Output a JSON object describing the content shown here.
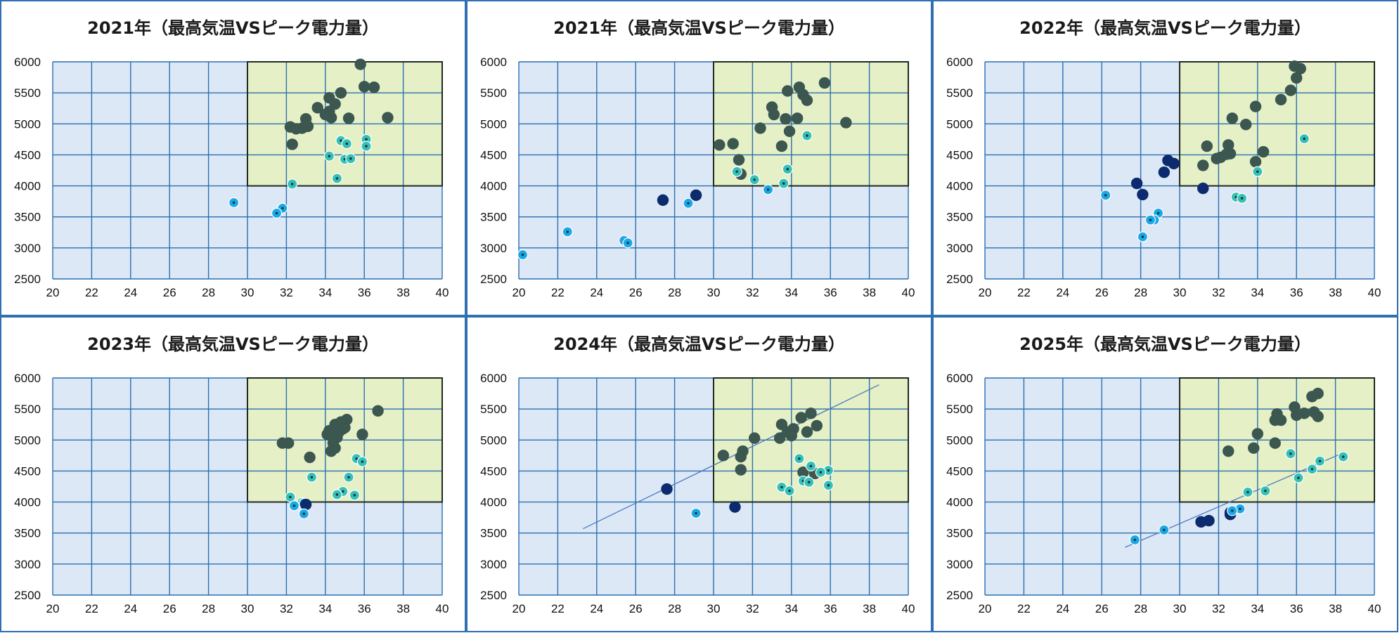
{
  "colors": {
    "panel_border": "#2f6fb3",
    "plot_bg": "#dde8f6",
    "grid": "#2a6fb0",
    "zone_fill": "#e5f0c6",
    "zone_border": "#1f2a20",
    "dark_green": "#3c5650",
    "teal": "#35c0b8",
    "blue": "#1aa8e8",
    "navy": "#0b2b6e",
    "trend": "#4a78c0"
  },
  "chart_data": [
    {
      "type": "scatter",
      "title": "2021年（最高気温VSピーク電力量）",
      "xlim": [
        20,
        40
      ],
      "ylim": [
        2500,
        6000
      ],
      "x_ticks": [
        "20",
        "22",
        "24",
        "26",
        "28",
        "30",
        "32",
        "34",
        "36",
        "38",
        "40"
      ],
      "y_ticks": [
        "2500",
        "3000",
        "3500",
        "4000",
        "4500",
        "5000",
        "5500",
        "6000"
      ],
      "highlight_zone": {
        "x": [
          30,
          40
        ],
        "y": [
          4000,
          6000
        ]
      },
      "grid": true,
      "series": [
        {
          "color": "dark_green",
          "marker": "large",
          "points": [
            [
              35.8,
              5960
            ],
            [
              36.0,
              5600
            ],
            [
              36.5,
              5590
            ],
            [
              34.8,
              5500
            ],
            [
              34.2,
              5420
            ],
            [
              34.5,
              5320
            ],
            [
              33.6,
              5260
            ],
            [
              34.0,
              5150
            ],
            [
              34.3,
              5100
            ],
            [
              35.2,
              5090
            ],
            [
              37.2,
              5100
            ],
            [
              33.0,
              5080
            ],
            [
              33.1,
              4960
            ],
            [
              32.2,
              4950
            ],
            [
              32.5,
              4920
            ],
            [
              32.8,
              4930
            ],
            [
              32.3,
              4670
            ],
            [
              34.2,
              5200
            ]
          ]
        },
        {
          "color": "teal",
          "marker": "dot",
          "points": [
            [
              34.8,
              4730
            ],
            [
              35.1,
              4680
            ],
            [
              36.1,
              4750
            ],
            [
              36.1,
              4640
            ],
            [
              34.2,
              4480
            ],
            [
              35.0,
              4430
            ],
            [
              35.3,
              4440
            ],
            [
              34.6,
              4120
            ],
            [
              32.3,
              4030
            ]
          ]
        },
        {
          "color": "blue",
          "marker": "dot",
          "points": [
            [
              29.3,
              3730
            ],
            [
              31.8,
              3640
            ],
            [
              31.5,
              3560
            ]
          ]
        }
      ]
    },
    {
      "type": "scatter",
      "title": "2021年（最高気温VSピーク電力量）",
      "xlim": [
        20,
        40
      ],
      "ylim": [
        2500,
        6000
      ],
      "x_ticks": [
        "20",
        "22",
        "24",
        "26",
        "28",
        "30",
        "32",
        "34",
        "36",
        "38",
        "40"
      ],
      "y_ticks": [
        "2500",
        "3000",
        "3500",
        "4000",
        "4500",
        "5000",
        "5500",
        "6000"
      ],
      "highlight_zone": {
        "x": [
          30,
          40
        ],
        "y": [
          4000,
          6000
        ]
      },
      "grid": true,
      "series": [
        {
          "color": "dark_green",
          "marker": "large",
          "points": [
            [
              35.7,
              5660
            ],
            [
              34.4,
              5590
            ],
            [
              33.8,
              5530
            ],
            [
              34.6,
              5470
            ],
            [
              34.8,
              5380
            ],
            [
              33.0,
              5270
            ],
            [
              33.1,
              5150
            ],
            [
              33.7,
              5080
            ],
            [
              34.3,
              5090
            ],
            [
              36.8,
              5020
            ],
            [
              32.4,
              4930
            ],
            [
              33.9,
              4880
            ],
            [
              30.3,
              4660
            ],
            [
              31.0,
              4680
            ],
            [
              33.5,
              4640
            ],
            [
              31.3,
              4420
            ],
            [
              31.4,
              4190
            ]
          ]
        },
        {
          "color": "teal",
          "marker": "dot",
          "points": [
            [
              34.8,
              4810
            ],
            [
              33.8,
              4270
            ],
            [
              31.2,
              4230
            ],
            [
              32.1,
              4100
            ],
            [
              33.6,
              4040
            ]
          ]
        },
        {
          "color": "navy",
          "marker": "large",
          "points": [
            [
              29.1,
              3850
            ],
            [
              27.4,
              3770
            ]
          ]
        },
        {
          "color": "blue",
          "marker": "dot",
          "points": [
            [
              32.8,
              3940
            ],
            [
              28.7,
              3720
            ],
            [
              22.5,
              3260
            ],
            [
              25.4,
              3120
            ],
            [
              25.6,
              3080
            ],
            [
              20.2,
              2890
            ]
          ]
        }
      ]
    },
    {
      "type": "scatter",
      "title": "2022年（最高気温VSピーク電力量）",
      "xlim": [
        20,
        40
      ],
      "ylim": [
        2500,
        6000
      ],
      "x_ticks": [
        "20",
        "22",
        "24",
        "26",
        "28",
        "30",
        "32",
        "34",
        "36",
        "38",
        "40"
      ],
      "y_ticks": [
        "2500",
        "3000",
        "3500",
        "4000",
        "4500",
        "5000",
        "5500",
        "6000"
      ],
      "highlight_zone": {
        "x": [
          30,
          40
        ],
        "y": [
          4000,
          6000
        ]
      },
      "grid": true,
      "series": [
        {
          "color": "dark_green",
          "marker": "large",
          "points": [
            [
              35.9,
              5930
            ],
            [
              36.2,
              5890
            ],
            [
              36.0,
              5740
            ],
            [
              35.7,
              5540
            ],
            [
              35.2,
              5390
            ],
            [
              33.9,
              5280
            ],
            [
              32.7,
              5090
            ],
            [
              33.4,
              4990
            ],
            [
              32.5,
              4660
            ],
            [
              31.4,
              4640
            ],
            [
              34.3,
              4550
            ],
            [
              32.4,
              4510
            ],
            [
              32.6,
              4520
            ],
            [
              32.1,
              4460
            ],
            [
              31.9,
              4440
            ],
            [
              33.9,
              4390
            ],
            [
              31.2,
              4330
            ]
          ]
        },
        {
          "color": "teal",
          "marker": "dot",
          "points": [
            [
              36.4,
              4760
            ],
            [
              34.0,
              4230
            ],
            [
              32.9,
              3820
            ],
            [
              33.2,
              3800
            ]
          ]
        },
        {
          "color": "navy",
          "marker": "large",
          "points": [
            [
              29.4,
              4410
            ],
            [
              29.7,
              4360
            ],
            [
              29.2,
              4220
            ],
            [
              27.8,
              4040
            ],
            [
              28.1,
              3860
            ],
            [
              31.2,
              3960
            ]
          ]
        },
        {
          "color": "blue",
          "marker": "dot",
          "points": [
            [
              26.2,
              3850
            ],
            [
              28.9,
              3560
            ],
            [
              28.7,
              3450
            ],
            [
              28.5,
              3450
            ],
            [
              28.1,
              3180
            ]
          ]
        }
      ]
    },
    {
      "type": "scatter",
      "title": "2023年（最高気温VSピーク電力量）",
      "xlim": [
        20,
        40
      ],
      "ylim": [
        2500,
        6000
      ],
      "x_ticks": [
        "20",
        "22",
        "24",
        "26",
        "28",
        "30",
        "32",
        "34",
        "36",
        "38",
        "40"
      ],
      "y_ticks": [
        "2500",
        "3000",
        "3500",
        "4000",
        "4500",
        "5000",
        "5500",
        "6000"
      ],
      "highlight_zone": {
        "x": [
          30,
          40
        ],
        "y": [
          4000,
          6000
        ]
      },
      "grid": true,
      "series": [
        {
          "color": "dark_green",
          "marker": "large",
          "points": [
            [
              36.7,
              5470
            ],
            [
              35.1,
              5330
            ],
            [
              34.8,
              5290
            ],
            [
              34.5,
              5250
            ],
            [
              35.0,
              5200
            ],
            [
              34.2,
              5150
            ],
            [
              34.3,
              5120
            ],
            [
              34.7,
              5130
            ],
            [
              34.9,
              5180
            ],
            [
              34.1,
              5090
            ],
            [
              35.9,
              5090
            ],
            [
              34.6,
              5040
            ],
            [
              31.8,
              4950
            ],
            [
              32.1,
              4950
            ],
            [
              34.4,
              4950
            ],
            [
              34.5,
              4870
            ],
            [
              34.3,
              4820
            ],
            [
              33.2,
              4720
            ]
          ]
        },
        {
          "color": "teal",
          "marker": "dot",
          "points": [
            [
              35.6,
              4700
            ],
            [
              35.9,
              4650
            ],
            [
              33.3,
              4400
            ],
            [
              35.2,
              4400
            ],
            [
              34.9,
              4170
            ],
            [
              34.6,
              4120
            ],
            [
              35.5,
              4110
            ],
            [
              32.2,
              4080
            ],
            [
              32.8,
              3990
            ],
            [
              32.9,
              3980
            ]
          ]
        },
        {
          "color": "navy",
          "marker": "large",
          "points": [
            [
              33.0,
              3960
            ]
          ]
        },
        {
          "color": "blue",
          "marker": "dot",
          "points": [
            [
              32.4,
              3940
            ],
            [
              32.9,
              3810
            ]
          ]
        }
      ]
    },
    {
      "type": "scatter",
      "title": "2024年（最高気温VSピーク電力量）",
      "xlim": [
        20,
        40
      ],
      "ylim": [
        2500,
        6000
      ],
      "x_ticks": [
        "20",
        "22",
        "24",
        "26",
        "28",
        "30",
        "32",
        "34",
        "36",
        "38",
        "40"
      ],
      "y_ticks": [
        "2500",
        "3000",
        "3500",
        "4000",
        "4500",
        "5000",
        "5500",
        "6000"
      ],
      "highlight_zone": {
        "x": [
          30,
          40
        ],
        "y": [
          4000,
          6000
        ]
      },
      "grid": true,
      "trendline": [
        [
          23.3,
          3570
        ],
        [
          38.5,
          5890
        ]
      ],
      "series": [
        {
          "color": "dark_green",
          "marker": "large",
          "points": [
            [
              35.0,
              5430
            ],
            [
              34.5,
              5360
            ],
            [
              33.5,
              5250
            ],
            [
              34.1,
              5180
            ],
            [
              33.8,
              5130
            ],
            [
              34.0,
              5070
            ],
            [
              34.8,
              5130
            ],
            [
              35.3,
              5230
            ],
            [
              32.1,
              5030
            ],
            [
              33.4,
              5030
            ],
            [
              31.5,
              4820
            ],
            [
              30.5,
              4750
            ],
            [
              31.4,
              4730
            ],
            [
              34.6,
              4480
            ],
            [
              35.2,
              4460
            ],
            [
              31.4,
              4520
            ]
          ]
        },
        {
          "color": "teal",
          "marker": "dot",
          "points": [
            [
              34.4,
              4700
            ],
            [
              35.0,
              4580
            ],
            [
              35.9,
              4510
            ],
            [
              35.5,
              4480
            ],
            [
              34.6,
              4340
            ],
            [
              34.9,
              4320
            ],
            [
              35.9,
              4270
            ],
            [
              33.5,
              4240
            ],
            [
              33.9,
              4180
            ]
          ]
        },
        {
          "color": "navy",
          "marker": "large",
          "points": [
            [
              27.6,
              4210
            ],
            [
              31.1,
              3920
            ]
          ]
        },
        {
          "color": "blue",
          "marker": "dot",
          "points": [
            [
              29.1,
              3820
            ]
          ]
        }
      ]
    },
    {
      "type": "scatter",
      "title": "2025年（最高気温VSピーク電力量）",
      "xlim": [
        20,
        40
      ],
      "ylim": [
        2500,
        6000
      ],
      "x_ticks": [
        "20",
        "22",
        "24",
        "26",
        "28",
        "30",
        "32",
        "34",
        "36",
        "38",
        "40"
      ],
      "y_ticks": [
        "2500",
        "3000",
        "3500",
        "4000",
        "4500",
        "5000",
        "5500",
        "6000"
      ],
      "highlight_zone": {
        "x": [
          30,
          40
        ],
        "y": [
          4000,
          6000
        ]
      },
      "grid": true,
      "trendline": [
        [
          27.2,
          3270
        ],
        [
          38.3,
          4780
        ]
      ],
      "series": [
        {
          "color": "dark_green",
          "marker": "large",
          "points": [
            [
              37.1,
              5750
            ],
            [
              36.8,
              5700
            ],
            [
              35.9,
              5530
            ],
            [
              36.4,
              5430
            ],
            [
              36.9,
              5450
            ],
            [
              37.1,
              5380
            ],
            [
              36.0,
              5400
            ],
            [
              35.0,
              5420
            ],
            [
              34.9,
              5320
            ],
            [
              35.2,
              5320
            ],
            [
              34.0,
              5100
            ],
            [
              34.9,
              4950
            ],
            [
              33.8,
              4870
            ],
            [
              32.5,
              4820
            ]
          ]
        },
        {
          "color": "teal",
          "marker": "dot",
          "points": [
            [
              35.7,
              4780
            ],
            [
              38.4,
              4730
            ],
            [
              37.2,
              4660
            ],
            [
              36.8,
              4530
            ],
            [
              36.1,
              4390
            ],
            [
              34.4,
              4180
            ],
            [
              33.5,
              4160
            ]
          ]
        },
        {
          "color": "navy",
          "marker": "large",
          "points": [
            [
              31.5,
              3700
            ],
            [
              31.1,
              3680
            ],
            [
              32.6,
              3830
            ],
            [
              32.6,
              3800
            ]
          ]
        },
        {
          "color": "blue",
          "marker": "dot",
          "points": [
            [
              33.1,
              3890
            ],
            [
              32.7,
              3860
            ],
            [
              29.2,
              3550
            ],
            [
              27.7,
              3390
            ]
          ]
        }
      ]
    }
  ]
}
